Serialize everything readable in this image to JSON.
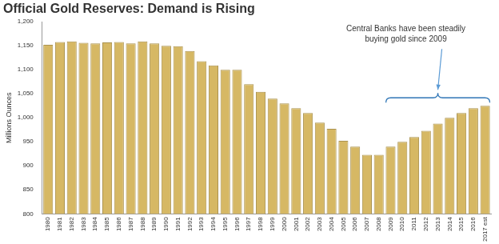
{
  "chart_data": {
    "type": "bar",
    "title": "Official Gold Reserves: Demand is Rising",
    "y_label": "Millions Ounces",
    "categories": [
      "1980",
      "1981",
      "1982",
      "1983",
      "1984",
      "1985",
      "1986",
      "1987",
      "1988",
      "1989",
      "1990",
      "1991",
      "1992",
      "1993",
      "1994",
      "1995",
      "1996",
      "1997",
      "1998",
      "1999",
      "2000",
      "2001",
      "2002",
      "2003",
      "2004",
      "2005",
      "2006",
      "2007",
      "2008",
      "2009",
      "2010",
      "2011",
      "2012",
      "2013",
      "2014",
      "2015",
      "2016",
      "2017 est"
    ],
    "values": [
      1152,
      1158,
      1159,
      1156,
      1155,
      1157,
      1158,
      1155,
      1159,
      1155,
      1150,
      1149,
      1139,
      1118,
      1109,
      1100,
      1100,
      1070,
      1054,
      1040,
      1030,
      1020,
      1010,
      990,
      977,
      952,
      940,
      923,
      923,
      940,
      950,
      960,
      973,
      988,
      1000,
      1010,
      1020,
      1025
    ],
    "color": "#d6b864",
    "ylim": [
      800,
      1200
    ],
    "yticks": [
      800,
      850,
      900,
      950,
      {
        "value": 1000,
        "label": "1,000"
      },
      {
        "value": 1050,
        "label": "1,050"
      },
      {
        "value": 1100,
        "label": "1,100"
      },
      {
        "value": 1150,
        "label": "1,150"
      },
      {
        "value": 1200,
        "label": "1,200"
      }
    ],
    "grid": false,
    "annotation": {
      "text": "Central Banks have been steadily buying gold since 2009",
      "span": [
        "2009",
        "2017 est"
      ]
    }
  }
}
